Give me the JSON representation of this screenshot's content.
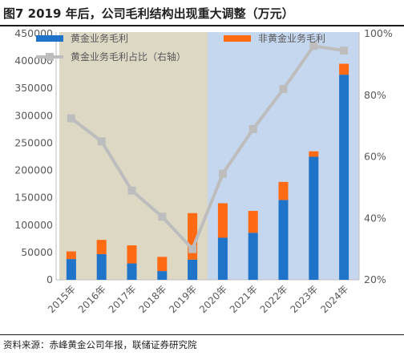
{
  "header": {
    "title": "图7  2019 年后，公司毛利结构出现重大调整（万元）"
  },
  "footer": {
    "source": "资料来源：赤峰黄金公司年报，联储证券研究院"
  },
  "colors": {
    "gold_bar": "#1f73c8",
    "nongold_bar": "#ff6a13",
    "ratio_line": "#bdbdbd",
    "shade_left": "#ddd8c4",
    "shade_right": "#c5d7ee",
    "tick_text": "#595959"
  },
  "chart_data": {
    "type": "bar",
    "stacked": true,
    "categories": [
      "2015年",
      "2016年",
      "2017年",
      "2018年",
      "2019年",
      "2020年",
      "2021年",
      "2022年",
      "2023年",
      "2024年"
    ],
    "series": [
      {
        "name": "黄金业务毛利",
        "values": [
          38000,
          47000,
          30000,
          16000,
          37000,
          77000,
          86000,
          146000,
          225000,
          375000
        ]
      },
      {
        "name": "非黄金业务毛利",
        "values": [
          14000,
          26000,
          33000,
          26000,
          85000,
          63000,
          40000,
          33000,
          10000,
          20000
        ]
      }
    ],
    "line_series": {
      "name": "黄金业务毛利占比（右轴）",
      "axis": "right",
      "values": [
        72.5,
        65,
        49,
        40.5,
        30,
        54.5,
        69,
        82,
        96,
        94.5
      ]
    },
    "ylim": [
      0,
      450000
    ],
    "yticks": [
      "0",
      "50000",
      "100000",
      "150000",
      "200000",
      "250000",
      "300000",
      "350000",
      "400000",
      "450000"
    ],
    "y2lim": [
      20,
      100
    ],
    "y2ticks": [
      "20%",
      "40%",
      "60%",
      "80%",
      "100%"
    ],
    "shaded_regions": [
      {
        "from": "2015年",
        "to": "2019年"
      },
      {
        "from": "2020年",
        "to": "2024年"
      }
    ],
    "legend_position": "top",
    "grid": false
  }
}
